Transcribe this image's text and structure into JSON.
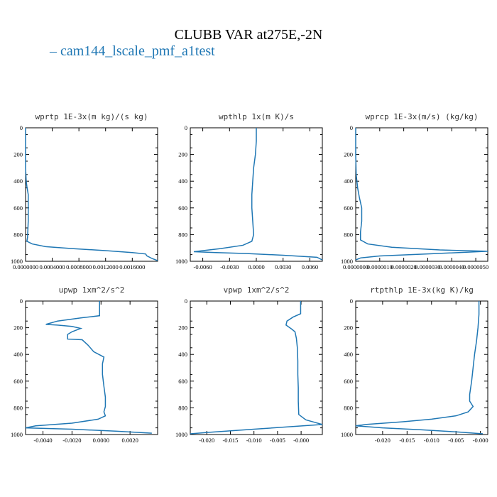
{
  "figure_title": "CLUBB VAR at275E,-2N",
  "legend": {
    "label": "cam144_lscale_pmf_a1test",
    "color": "#1f77b4"
  },
  "chart_data": [
    {
      "type": "line",
      "title": "wprtp  1E-3x(m kg)/(s kg)",
      "xlim": [
        0.0,
        0.00198
      ],
      "ylim": [
        1000,
        0
      ],
      "xticks": [
        "0.0000000",
        "0.0004000",
        "0.0008000",
        "0.0012000",
        "0.0016000"
      ],
      "yticks": [
        0,
        200,
        400,
        600,
        800,
        1000
      ],
      "series": [
        {
          "color": "#1f77b4",
          "points": [
            [
              0.0,
              0
            ],
            [
              0.0,
              100
            ],
            [
              0.0,
              200
            ],
            [
              0.0,
              300
            ],
            [
              5e-06,
              350
            ],
            [
              1e-05,
              400
            ],
            [
              2e-05,
              440
            ],
            [
              4e-05,
              500
            ],
            [
              4e-05,
              600
            ],
            [
              4e-05,
              700
            ],
            [
              3.5e-05,
              760
            ],
            [
              3e-05,
              820
            ],
            [
              2e-05,
              850
            ],
            [
              0.0001,
              870
            ],
            [
              0.0003,
              890
            ],
            [
              0.0007,
              905
            ],
            [
              0.0012,
              920
            ],
            [
              0.0016,
              935
            ],
            [
              0.0018,
              945
            ],
            [
              0.00182,
              960
            ],
            [
              0.0019,
              980
            ],
            [
              0.00198,
              995
            ]
          ]
        }
      ]
    },
    {
      "type": "line",
      "title": "wpthlp  1x(m K)/s",
      "xlim": [
        -0.0074,
        0.0074
      ],
      "ylim": [
        1000,
        0
      ],
      "xticks": [
        "-0.0060",
        "-0.0030",
        "0.0000",
        "0.0030",
        "0.0060"
      ],
      "yticks": [
        0,
        200,
        400,
        600,
        800,
        1000
      ],
      "series": [
        {
          "color": "#1f77b4",
          "points": [
            [
              0.0,
              0
            ],
            [
              0.0,
              100
            ],
            [
              -0.0001,
              200
            ],
            [
              -0.0003,
              300
            ],
            [
              -0.0004,
              400
            ],
            [
              -0.0005,
              500
            ],
            [
              -0.0005,
              600
            ],
            [
              -0.0004,
              700
            ],
            [
              -0.0003,
              800
            ],
            [
              -0.0005,
              850
            ],
            [
              -0.0015,
              880
            ],
            [
              -0.004,
              905
            ],
            [
              -0.007,
              928
            ],
            [
              -0.0045,
              935
            ],
            [
              -0.001,
              942
            ],
            [
              0.003,
              955
            ],
            [
              0.0068,
              970
            ],
            [
              0.0074,
              990
            ]
          ]
        }
      ]
    },
    {
      "type": "line",
      "title": "wprcp  1E-3x(m/s) (kg/kg)",
      "xlim": [
        0.0,
        5.5e-06
      ],
      "ylim": [
        1000,
        0
      ],
      "xticks": [
        "0.0000000",
        "0.0000010",
        "0.0000020",
        "0.0000030",
        "0.0000040",
        "0.0000050"
      ],
      "yticks": [
        0,
        200,
        400,
        600,
        800,
        1000
      ],
      "series": [
        {
          "color": "#1f77b4",
          "points": [
            [
              0.0,
              0
            ],
            [
              0.0,
              200
            ],
            [
              2e-08,
              350
            ],
            [
              8e-08,
              450
            ],
            [
              1.5e-07,
              520
            ],
            [
              2.5e-07,
              600
            ],
            [
              2.5e-07,
              700
            ],
            [
              2e-07,
              780
            ],
            [
              2e-07,
              840
            ],
            [
              5e-07,
              870
            ],
            [
              1.5e-06,
              895
            ],
            [
              3.5e-06,
              915
            ],
            [
              5.5e-06,
              925
            ],
            [
              3e-06,
              945
            ],
            [
              1e-06,
              960
            ],
            [
              2e-07,
              975
            ],
            [
              0.0,
              990
            ]
          ]
        }
      ]
    },
    {
      "type": "line",
      "title": "upwp  1xm^2/s^2",
      "xlim": [
        -0.0052,
        0.0039
      ],
      "ylim": [
        1000,
        0
      ],
      "xticks": [
        "-0.0040",
        "-0.0020",
        "0.0000",
        "0.0020"
      ],
      "yticks": [
        0,
        200,
        400,
        600,
        800,
        1000
      ],
      "series": [
        {
          "color": "#1f77b4",
          "points": [
            [
              -0.0001,
              0
            ],
            [
              -0.0001,
              110
            ],
            [
              -0.0013,
              125
            ],
            [
              -0.003,
              150
            ],
            [
              -0.0038,
              175
            ],
            [
              -0.003,
              180
            ],
            [
              -0.002,
              190
            ],
            [
              -0.0014,
              205
            ],
            [
              -0.002,
              230
            ],
            [
              -0.0023,
              250
            ],
            [
              -0.0023,
              285
            ],
            [
              -0.0013,
              290
            ],
            [
              -0.0009,
              330
            ],
            [
              -0.0005,
              380
            ],
            [
              0.0002,
              420
            ],
            [
              0.0001,
              470
            ],
            [
              0.0001,
              550
            ],
            [
              0.0002,
              640
            ],
            [
              0.0003,
              720
            ],
            [
              0.0003,
              790
            ],
            [
              0.0002,
              830
            ],
            [
              0.0003,
              860
            ],
            [
              -0.0002,
              885
            ],
            [
              -0.002,
              915
            ],
            [
              -0.0045,
              935
            ],
            [
              -0.0052,
              950
            ],
            [
              -0.002,
              960
            ],
            [
              0.001,
              975
            ],
            [
              0.0035,
              990
            ]
          ]
        }
      ]
    },
    {
      "type": "line",
      "title": "vpwp  1xm^2/s^2",
      "xlim": [
        -0.0235,
        0.0045
      ],
      "ylim": [
        1000,
        0
      ],
      "xticks": [
        "-0.020",
        "-0.015",
        "-0.010",
        "-0.005",
        "-0.000"
      ],
      "yticks": [
        0,
        200,
        400,
        600,
        800,
        1000
      ],
      "series": [
        {
          "color": "#1f77b4",
          "points": [
            [
              -0.0001,
              0
            ],
            [
              -0.0001,
              95
            ],
            [
              -0.0017,
              120
            ],
            [
              -0.003,
              150
            ],
            [
              -0.0032,
              180
            ],
            [
              -0.002,
              210
            ],
            [
              -0.0013,
              230
            ],
            [
              -0.001,
              280
            ],
            [
              -0.0008,
              350
            ],
            [
              -0.0007,
              450
            ],
            [
              -0.0007,
              550
            ],
            [
              -0.0006,
              650
            ],
            [
              -0.0006,
              750
            ],
            [
              -0.0005,
              850
            ],
            [
              0.001,
              890
            ],
            [
              0.003,
              910
            ],
            [
              0.0045,
              925
            ],
            [
              -0.01,
              960
            ],
            [
              -0.02,
              985
            ],
            [
              -0.0235,
              995
            ]
          ]
        }
      ]
    },
    {
      "type": "line",
      "title": "rtpthlp  1E-3x(kg K)/kg",
      "xlim": [
        -0.0255,
        0.0015
      ],
      "ylim": [
        1000,
        0
      ],
      "xticks": [
        "-0.020",
        "-0.015",
        "-0.010",
        "-0.005",
        "-0.000"
      ],
      "yticks": [
        0,
        200,
        400,
        600,
        800,
        1000
      ],
      "series": [
        {
          "color": "#1f77b4",
          "points": [
            [
              -0.0003,
              0
            ],
            [
              -0.0003,
              100
            ],
            [
              -0.0005,
              200
            ],
            [
              -0.0008,
              300
            ],
            [
              -0.0012,
              400
            ],
            [
              -0.0015,
              500
            ],
            [
              -0.0018,
              600
            ],
            [
              -0.0022,
              700
            ],
            [
              -0.0022,
              750
            ],
            [
              -0.0015,
              790
            ],
            [
              -0.0025,
              830
            ],
            [
              -0.005,
              860
            ],
            [
              -0.01,
              885
            ],
            [
              -0.016,
              905
            ],
            [
              -0.0235,
              925
            ],
            [
              -0.0255,
              935
            ],
            [
              -0.02,
              950
            ],
            [
              -0.012,
              965
            ],
            [
              -0.005,
              980
            ],
            [
              0.0005,
              995
            ]
          ]
        }
      ]
    }
  ]
}
